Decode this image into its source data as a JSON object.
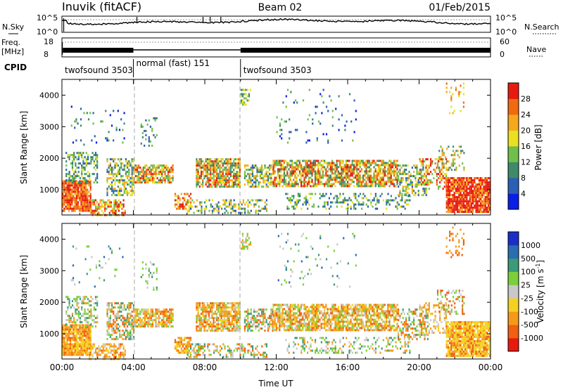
{
  "header": {
    "station": "Inuvik (fitACF)",
    "beam": "Beam 02",
    "date": "01/Feb/2015"
  },
  "noise_panel": {
    "left_label": "N.Sky",
    "right_label": "N.Search",
    "ticks": [
      "10^5",
      "10^0"
    ]
  },
  "freq_panel": {
    "left_label_1": "Freq.",
    "left_label_2": "[MHz]",
    "left_ticks": [
      "18",
      "8"
    ],
    "right_label": "Nave",
    "right_ticks": [
      "60",
      "0"
    ]
  },
  "cpid": {
    "label": "CPID",
    "segments": [
      {
        "label": "twofsound 3503",
        "start": 0,
        "end": 4
      },
      {
        "label": "normal (fast) 151",
        "start": 4,
        "end": 10
      },
      {
        "label": "twofsound 3503",
        "start": 10,
        "end": 24
      }
    ]
  },
  "chart_data": [
    {
      "type": "heatmap",
      "quantity": "Power",
      "ylabel": "Slant Range [km]",
      "ylim": [
        200,
        4500
      ],
      "yticks": [
        "1000",
        "2000",
        "3000",
        "4000"
      ],
      "xlim": [
        0,
        24
      ],
      "colorbar": {
        "label": "Power [dB]",
        "ticks": [
          "4",
          "8",
          "12",
          "16",
          "20",
          "24",
          "28"
        ],
        "colors": [
          "#0a1fe6",
          "#2b5fb5",
          "#3f8a6a",
          "#6fbf4a",
          "#e8e020",
          "#f5a81c",
          "#f06a12",
          "#e81a10"
        ]
      }
    },
    {
      "type": "heatmap",
      "quantity": "Velocity",
      "ylabel": "Slant Range [km]",
      "ylim": [
        200,
        4500
      ],
      "yticks": [
        "1000",
        "2000",
        "3000",
        "4000"
      ],
      "xlim": [
        0,
        24
      ],
      "xlabel": "Time UT",
      "xticks": [
        "00:00",
        "04:00",
        "08:00",
        "12:00",
        "16:00",
        "20:00",
        "00:00"
      ],
      "colorbar": {
        "label_main": "Velocity  [m s",
        "label_exp": "-1",
        "label_close": "]",
        "ticks": [
          "1000",
          "500",
          "100",
          "25",
          "-25",
          "-100",
          "-500",
          "-1000"
        ],
        "colors": [
          "#1a2fc8",
          "#2a6db0",
          "#3c9a78",
          "#7ccf3a",
          "#c8c8c8",
          "#f5d020",
          "#f59a18",
          "#f06010",
          "#e81a10"
        ]
      }
    }
  ]
}
